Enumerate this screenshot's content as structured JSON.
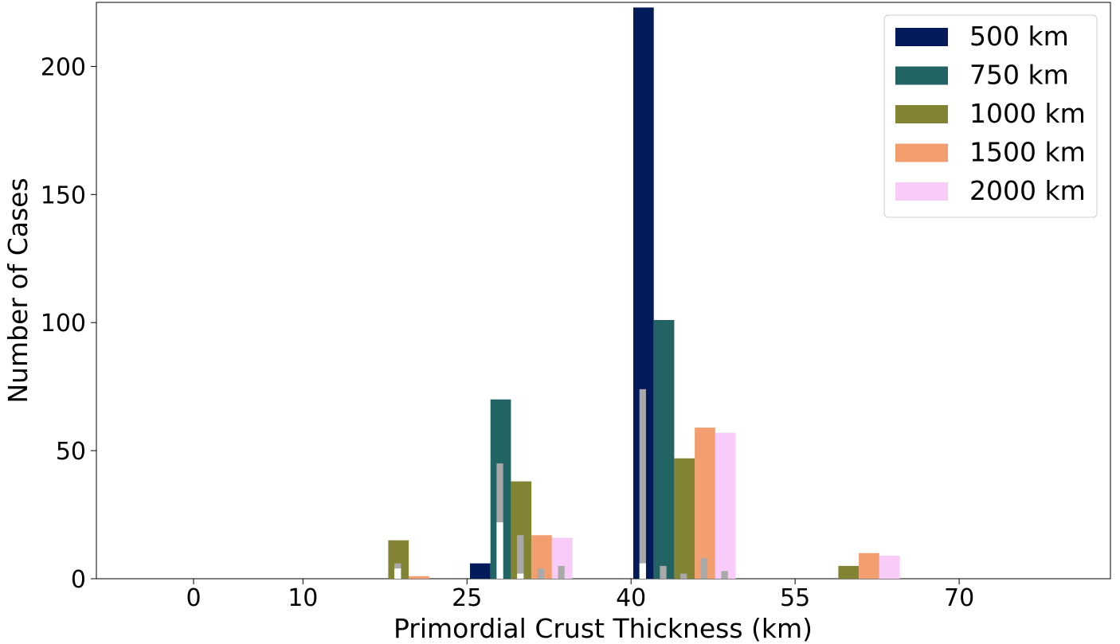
{
  "chart_data": {
    "type": "bar",
    "title": "",
    "xlabel": "Primordial Crust Thickness (km)",
    "ylabel": "Number of Cases",
    "x_ticks": [
      0,
      10,
      25,
      40,
      55,
      70
    ],
    "y_ticks": [
      0,
      50,
      100,
      150,
      200
    ],
    "ylim": [
      0,
      225
    ],
    "legend_position": "top-right",
    "grid": false,
    "series": [
      {
        "name": "500 km",
        "color": "#031b5b",
        "values": {
          "10": 0,
          "25": 6,
          "40": 223,
          "55": 0
        }
      },
      {
        "name": "750 km",
        "color": "#226464",
        "values": {
          "10": 0,
          "25": 70,
          "40": 101,
          "55": 0
        }
      },
      {
        "name": "1000 km",
        "color": "#828333",
        "values": {
          "10": 15,
          "25": 38,
          "40": 47,
          "55": 5
        }
      },
      {
        "name": "1500 km",
        "color": "#f29e6f",
        "values": {
          "10": 1,
          "25": 17,
          "40": 59,
          "55": 10
        }
      },
      {
        "name": "2000 km",
        "color": "#f8cbf8",
        "values": {
          "10": 0,
          "25": 16,
          "40": 57,
          "55": 9
        }
      }
    ],
    "overlay_bars": [
      {
        "x_group": "10",
        "series_index": 2,
        "gray": 6,
        "white": 4
      },
      {
        "x_group": "25",
        "series_index": 1,
        "gray": 45,
        "white": 22
      },
      {
        "x_group": "25",
        "series_index": 2,
        "gray": 17,
        "white": 2
      },
      {
        "x_group": "25",
        "series_index": 3,
        "gray": 4,
        "white": 0
      },
      {
        "x_group": "25",
        "series_index": 4,
        "gray": 5,
        "white": 0
      },
      {
        "x_group": "40",
        "series_index": 0,
        "gray": 74,
        "white": 6
      },
      {
        "x_group": "40",
        "series_index": 1,
        "gray": 5,
        "white": 0
      },
      {
        "x_group": "40",
        "series_index": 2,
        "gray": 2,
        "white": 0
      },
      {
        "x_group": "40",
        "series_index": 3,
        "gray": 8,
        "white": 0
      },
      {
        "x_group": "40",
        "series_index": 4,
        "gray": 3,
        "white": 0
      }
    ]
  }
}
